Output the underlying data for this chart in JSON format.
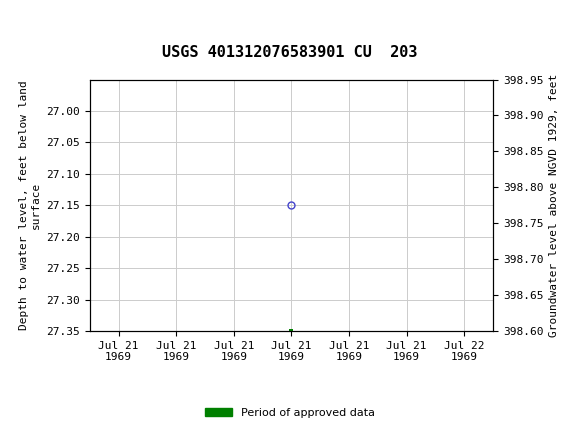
{
  "title": "USGS 401312076583901 CU  203",
  "ylabel_left": "Depth to water level, feet below land\nsurface",
  "ylabel_right": "Groundwater level above NGVD 1929, feet",
  "ylim_left": [
    27.35,
    26.95
  ],
  "ylim_right": [
    398.6,
    398.95
  ],
  "yticks_left": [
    27.0,
    27.05,
    27.1,
    27.15,
    27.2,
    27.25,
    27.3,
    27.35
  ],
  "yticks_right": [
    398.95,
    398.9,
    398.85,
    398.8,
    398.75,
    398.7,
    398.65,
    398.6
  ],
  "x_point_circle": 3.0,
  "y_point_circle": 27.15,
  "x_point_square": 3.0,
  "y_point_square": 27.35,
  "x_ticks": [
    0,
    1,
    2,
    3,
    4,
    5,
    6
  ],
  "x_tick_labels": [
    "Jul 21\n1969",
    "Jul 21\n1969",
    "Jul 21\n1969",
    "Jul 21\n1969",
    "Jul 21\n1969",
    "Jul 21\n1969",
    "Jul 22\n1969"
  ],
  "xlim": [
    -0.5,
    6.5
  ],
  "header_color": "#1a6b3c",
  "header_text_color": "#ffffff",
  "grid_color": "#cccccc",
  "circle_color": "#4444cc",
  "square_color": "#008000",
  "legend_label": "Period of approved data",
  "background_color": "#ffffff",
  "plot_bg_color": "#ffffff",
  "tick_fontsize": 8,
  "label_fontsize": 8,
  "title_fontsize": 11
}
